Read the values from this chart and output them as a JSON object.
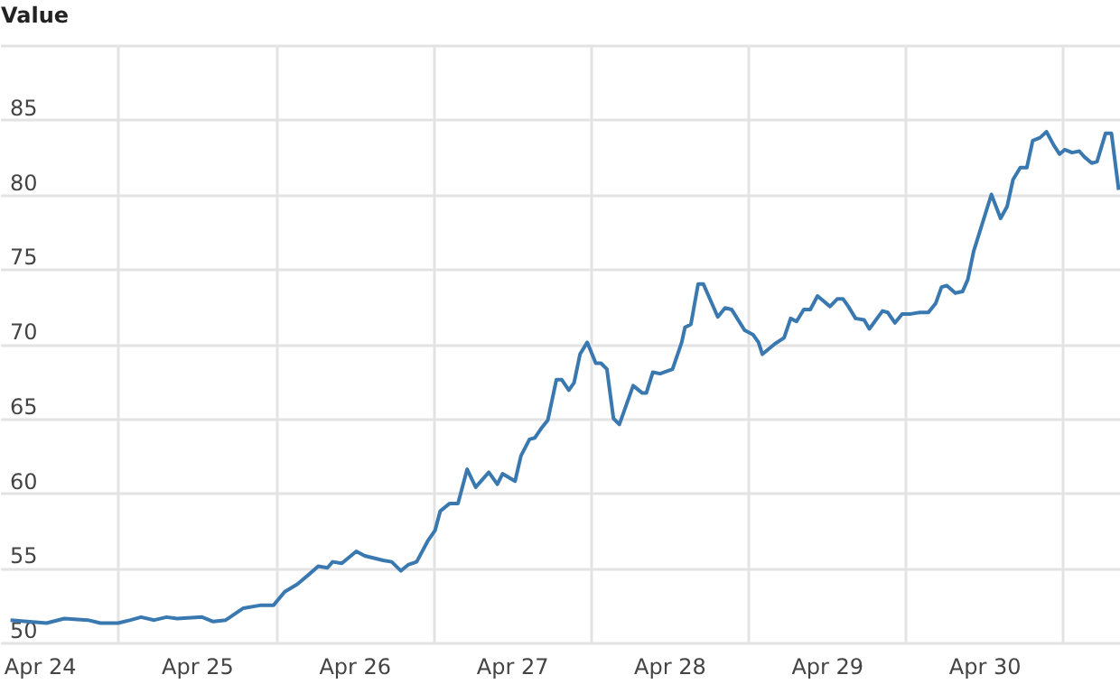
{
  "chart_data": {
    "type": "line",
    "ylabel": "Value",
    "x": [
      "--04-24T07:36",
      "--04-24T13:06",
      "--04-24T15:48",
      "--04-24T19:24",
      "--04-24T21:18",
      "--04-25T00:00",
      "--04-25T01:54",
      "--04-25T03:30",
      "--04-25T05:30",
      "--04-25T07:24",
      "--04-25T09:00",
      "--04-25T12:48",
      "--04-25T14:30",
      "--04-25T16:24",
      "--04-25T19:06",
      "--04-25T21:48",
      "--04-25T23:42",
      "--04-26T01:24",
      "--04-26T03:18",
      "--04-26T05:12",
      "--04-26T06:30",
      "--04-26T07:54",
      "--04-26T08:42",
      "--04-26T10:06",
      "--04-26T12:18",
      "--04-26T13:36",
      "--04-26T16:24",
      "--04-26T17:42",
      "--04-26T19:06",
      "--04-26T20:12",
      "--04-26T21:30",
      "--04-26T23:12",
      "--04-27T00:18",
      "--04-27T01:06",
      "--04-27T02:30",
      "--04-27T03:48",
      "--04-27T05:12",
      "--04-27T06:30",
      "--04-27T08:30",
      "--04-27T09:48",
      "--04-27T10:36",
      "--04-27T12:30",
      "--04-27T13:24",
      "--04-27T14:42",
      "--04-27T15:30",
      "--04-27T16:36",
      "--04-27T17:30",
      "--04-27T18:48",
      "--04-27T19:36",
      "--04-27T20:42",
      "--04-27T21:30",
      "--04-27T22:24",
      "--04-27T23:30",
      "--04-28T00:48",
      "--04-28T01:36",
      "--04-28T02:30",
      "--04-28T03:30",
      "--04-28T04:24",
      "--04-28T06:30",
      "--04-28T07:54",
      "--04-28T08:30",
      "--04-28T09:30",
      "--04-28T10:36",
      "--04-28T12:30",
      "--04-28T13:54",
      "--04-28T14:24",
      "--04-28T15:18",
      "--04-28T16:24",
      "--04-28T17:12",
      "--04-28T19:24",
      "--04-28T20:30",
      "--04-28T21:30",
      "--04-28T23:30",
      "--04-29T00:48",
      "--04-29T01:36",
      "--04-29T02:12",
      "--04-29T04:06",
      "--04-29T05:30",
      "--04-29T06:30",
      "--04-29T07:24",
      "--04-29T08:30",
      "--04-29T09:30",
      "--04-29T10:36",
      "--04-29T12:30",
      "--04-29T13:36",
      "--04-29T14:30",
      "--04-29T15:18",
      "--04-29T16:24",
      "--04-29T17:42",
      "--04-29T18:30",
      "--04-29T20:30",
      "--04-29T21:18",
      "--04-29T22:24",
      "--04-29T23:30",
      "--04-30T00:48",
      "--04-30T02:12",
      "--04-30T03:30",
      "--04-30T04:36",
      "--04-30T05:30",
      "--04-30T06:18",
      "--04-30T07:36",
      "--04-30T08:42",
      "--04-30T09:30",
      "--04-30T10:24",
      "--04-30T13:06",
      "--04-30T14:30",
      "--04-30T15:30",
      "--04-30T16:24",
      "--04-30T17:30",
      "--04-30T18:30",
      "--04-30T19:24",
      "--04-30T20:30",
      "--04-30T21:30",
      "--04-30T22:36",
      "--04-30T23:30",
      "--05-01T00:18",
      "--05-01T01:24",
      "--05-01T02:30",
      "--05-01T03:18",
      "--05-01T04:24",
      "--05-01T05:12",
      "--05-01T06:30",
      "--05-01T07:24",
      "--05-01T08:30"
    ],
    "series": [
      {
        "color": "#3a78b0",
        "values": [
          51.5,
          51.3,
          51.6,
          51.5,
          51.3,
          51.3,
          51.5,
          51.7,
          51.5,
          51.7,
          51.6,
          51.7,
          51.4,
          51.5,
          52.3,
          52.5,
          52.5,
          53.4,
          53.9,
          54.6,
          55.1,
          55.0,
          55.4,
          55.3,
          56.1,
          55.8,
          55.5,
          55.4,
          54.8,
          55.2,
          55.4,
          56.8,
          57.5,
          58.8,
          59.3,
          59.3,
          61.6,
          60.4,
          61.4,
          60.6,
          61.3,
          60.8,
          62.5,
          63.6,
          63.7,
          64.4,
          64.9,
          67.6,
          67.6,
          66.9,
          67.4,
          69.3,
          70.1,
          68.7,
          68.7,
          68.3,
          65.0,
          64.6,
          67.2,
          66.7,
          66.7,
          68.1,
          68.0,
          68.3,
          70.1,
          71.1,
          71.3,
          74.0,
          74.0,
          71.8,
          72.4,
          72.3,
          70.9,
          70.6,
          70.1,
          69.3,
          70.0,
          70.4,
          71.7,
          71.5,
          72.3,
          72.3,
          73.2,
          72.5,
          73.0,
          73.0,
          72.5,
          71.7,
          71.6,
          71.0,
          72.2,
          72.1,
          71.4,
          72.0,
          72.0,
          72.1,
          72.1,
          72.7,
          73.8,
          73.9,
          73.4,
          73.5,
          74.3,
          76.2,
          80.0,
          78.4,
          79.2,
          81.0,
          81.8,
          81.8,
          83.6,
          83.8,
          84.2,
          83.3,
          82.7,
          83.0,
          82.8,
          82.9,
          82.5,
          82.1,
          82.2,
          84.1,
          84.1,
          80.3
        ]
      }
    ],
    "xlim": [
      "--04-24T06:00",
      "--05-01T08:42"
    ],
    "xticks": [
      {
        "value": "--04-24T12:00",
        "label": "Apr 24"
      },
      {
        "value": "--04-25",
        "label": null
      },
      {
        "value": "--04-25T12:00",
        "label": "Apr 25"
      },
      {
        "value": "--04-26",
        "label": null
      },
      {
        "value": "--04-26T12:00",
        "label": "Apr 26"
      },
      {
        "value": "--04-27",
        "label": null
      },
      {
        "value": "--04-27T12:00",
        "label": "Apr 27"
      },
      {
        "value": "--04-28",
        "label": null
      },
      {
        "value": "--04-28T12:00",
        "label": "Apr 28"
      },
      {
        "value": "--04-29",
        "label": null
      },
      {
        "value": "--04-29T12:00",
        "label": "Apr 29"
      },
      {
        "value": "--04-30",
        "label": null
      },
      {
        "value": "--04-30T12:00",
        "label": "Apr 30"
      },
      {
        "value": "--05-01",
        "label": null
      }
    ],
    "ylim": [
      50,
      90
    ],
    "yticks": [
      50,
      55,
      60,
      65,
      70,
      75,
      80,
      85,
      {
        "value": 90,
        "label": null
      }
    ],
    "grid": true,
    "marker": "none",
    "line_style": "solid"
  }
}
